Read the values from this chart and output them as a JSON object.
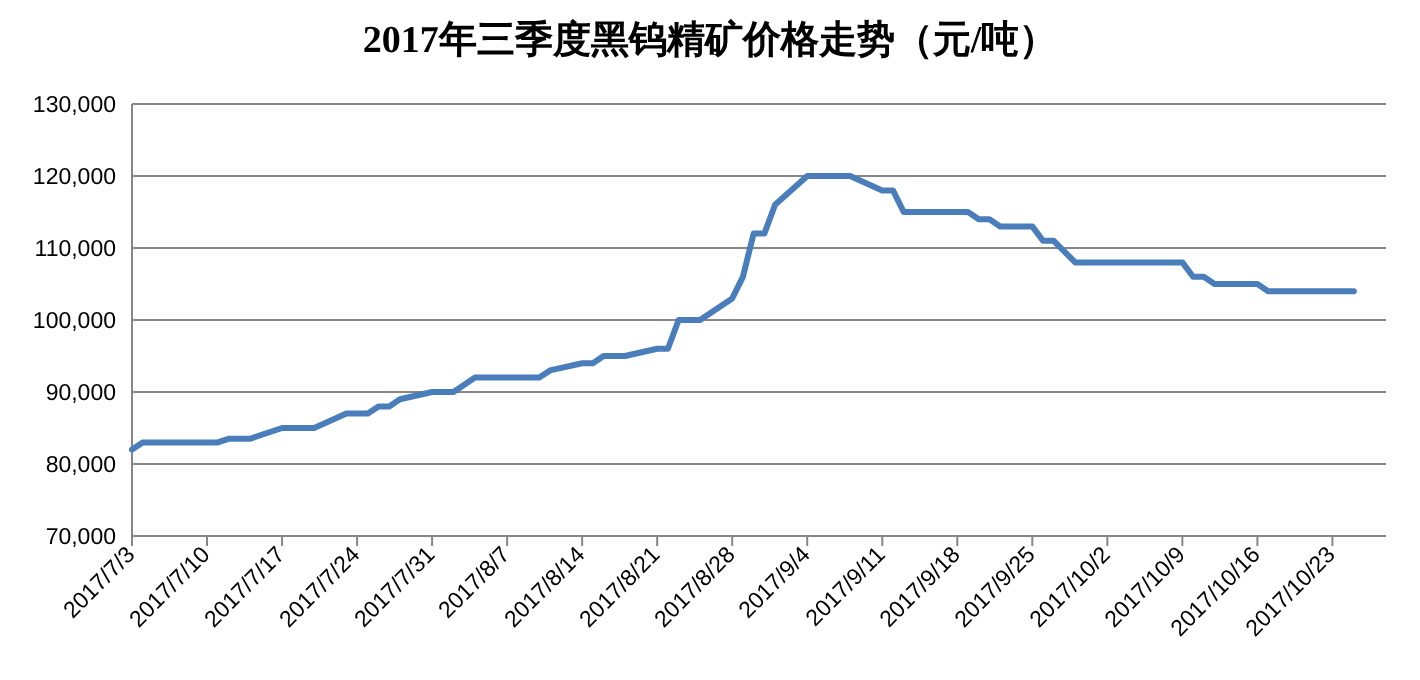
{
  "chart_data": {
    "type": "line",
    "title": "2017年三季度黑钨精矿价格走势（元/吨）",
    "x": [
      "2017-07-03",
      "2017-07-04",
      "2017-07-11",
      "2017-07-12",
      "2017-07-14",
      "2017-07-17",
      "2017-07-20",
      "2017-07-23",
      "2017-07-25",
      "2017-07-26",
      "2017-07-27",
      "2017-07-28",
      "2017-07-31",
      "2017-08-02",
      "2017-08-04",
      "2017-08-10",
      "2017-08-11",
      "2017-08-14",
      "2017-08-15",
      "2017-08-16",
      "2017-08-18",
      "2017-08-21",
      "2017-08-22",
      "2017-08-23",
      "2017-08-25",
      "2017-08-28",
      "2017-08-29",
      "2017-08-30",
      "2017-08-31",
      "2017-09-01",
      "2017-09-04",
      "2017-09-08",
      "2017-09-11",
      "2017-09-12",
      "2017-09-13",
      "2017-09-19",
      "2017-09-20",
      "2017-09-21",
      "2017-09-22",
      "2017-09-25",
      "2017-09-26",
      "2017-09-27",
      "2017-09-29",
      "2017-10-09",
      "2017-10-10",
      "2017-10-11",
      "2017-10-12",
      "2017-10-16",
      "2017-10-17",
      "2017-10-25"
    ],
    "series": [
      {
        "color": "#4a7ebb",
        "values": [
          82000,
          83000,
          83000,
          83500,
          83500,
          85000,
          85000,
          87000,
          87000,
          88000,
          88000,
          89000,
          90000,
          90000,
          92000,
          92000,
          93000,
          94000,
          94000,
          95000,
          95000,
          96000,
          96000,
          100000,
          100000,
          103000,
          106000,
          112000,
          112000,
          116000,
          120000,
          120000,
          118000,
          118000,
          115000,
          115000,
          114000,
          114000,
          113000,
          113000,
          111000,
          111000,
          108000,
          108000,
          106000,
          106000,
          105000,
          105000,
          104000,
          104000
        ]
      }
    ],
    "xlim": [
      "2017-07-03",
      "2017-10-28"
    ],
    "xticks": [
      {
        "value": "2017-07-03",
        "label": "2017/7/3"
      },
      {
        "value": "2017-07-10",
        "label": "2017/7/10"
      },
      {
        "value": "2017-07-17",
        "label": "2017/7/17"
      },
      {
        "value": "2017-07-24",
        "label": "2017/7/24"
      },
      {
        "value": "2017-07-31",
        "label": "2017/7/31"
      },
      {
        "value": "2017-08-07",
        "label": "2017/8/7"
      },
      {
        "value": "2017-08-14",
        "label": "2017/8/14"
      },
      {
        "value": "2017-08-21",
        "label": "2017/8/21"
      },
      {
        "value": "2017-08-28",
        "label": "2017/8/28"
      },
      {
        "value": "2017-09-04",
        "label": "2017/9/4"
      },
      {
        "value": "2017-09-11",
        "label": "2017/9/11"
      },
      {
        "value": "2017-09-18",
        "label": "2017/9/18"
      },
      {
        "value": "2017-09-25",
        "label": "2017/9/25"
      },
      {
        "value": "2017-10-02",
        "label": "2017/10/2"
      },
      {
        "value": "2017-10-09",
        "label": "2017/10/9"
      },
      {
        "value": "2017-10-16",
        "label": "2017/10/16"
      },
      {
        "value": "2017-10-23",
        "label": "2017/10/23"
      }
    ],
    "ylim": [
      70000,
      130000
    ],
    "yticks": [
      {
        "value": 70000,
        "label": "70,000"
      },
      {
        "value": 80000,
        "label": "80,000"
      },
      {
        "value": 90000,
        "label": "90,000"
      },
      {
        "value": 100000,
        "label": "100,000"
      },
      {
        "value": 110000,
        "label": "110,000"
      },
      {
        "value": 120000,
        "label": "120,000"
      },
      {
        "value": 130000,
        "label": "130,000"
      }
    ],
    "grid": "y"
  }
}
